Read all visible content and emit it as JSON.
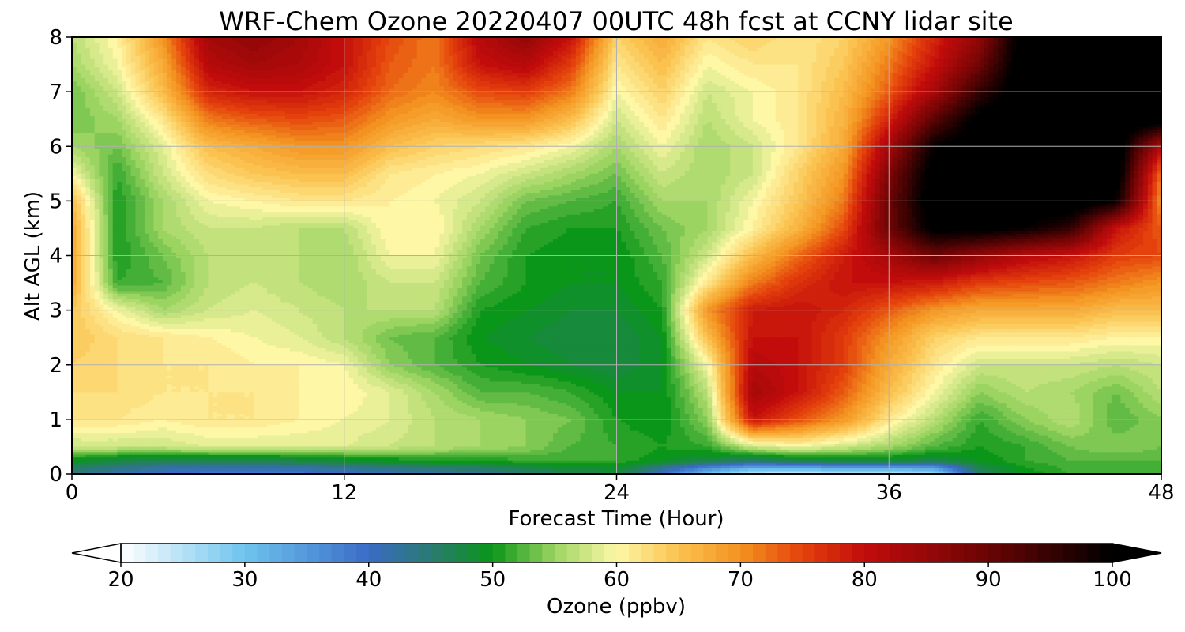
{
  "chart_data": {
    "type": "heatmap",
    "title": "WRF-Chem Ozone  20220407 00UTC 48h fcst at CCNY lidar site",
    "xlabel": "Forecast Time (Hour)",
    "ylabel": "Alt AGL (km)",
    "xlim": [
      0,
      48
    ],
    "ylim": [
      0,
      8
    ],
    "xticks": [
      0,
      12,
      24,
      36,
      48
    ],
    "yticks": [
      0,
      1,
      2,
      3,
      4,
      5,
      6,
      7,
      8
    ],
    "grid": true,
    "colorbar": {
      "label": "Ozone  (ppbv)",
      "range": [
        20,
        100
      ],
      "ticks": [
        20,
        30,
        40,
        50,
        60,
        70,
        80,
        90,
        100
      ],
      "extend": "both",
      "orientation": "horizontal",
      "colors": {
        "20": "#ffffff",
        "30": "#6ec4ee",
        "40": "#3a6cc7",
        "45": "#2a7a70",
        "50": "#0a9618",
        "55": "#9cd462",
        "60": "#fdf7a6",
        "65": "#fbc24f",
        "70": "#f39220",
        "75": "#e4410c",
        "80": "#c20c0c",
        "90": "#6a0404",
        "100": "#000000"
      }
    },
    "x": [
      0,
      2,
      4,
      6,
      8,
      10,
      12,
      14,
      16,
      18,
      20,
      22,
      24,
      26,
      28,
      30,
      32,
      34,
      36,
      38,
      40,
      42,
      44,
      46,
      48
    ],
    "y": [
      0,
      0.25,
      0.5,
      1,
      1.5,
      2,
      2.5,
      3,
      3.5,
      4,
      4.5,
      5,
      5.5,
      6,
      6.5,
      7,
      7.5,
      8
    ],
    "z": [
      [
        44,
        42,
        40,
        39,
        39,
        39,
        40,
        41,
        42,
        43,
        45,
        47,
        48,
        40,
        30,
        24,
        23,
        24,
        24,
        26,
        46,
        50,
        52,
        52,
        53
      ],
      [
        50,
        48,
        47,
        47,
        47,
        48,
        49,
        50,
        51,
        51,
        52,
        52,
        52,
        50,
        48,
        46,
        48,
        49,
        49,
        48,
        50,
        52,
        53,
        53,
        53
      ],
      [
        58,
        58,
        58,
        59,
        59,
        59,
        59,
        58,
        57,
        56,
        55,
        53,
        52,
        51,
        52,
        58,
        60,
        58,
        56,
        53,
        51,
        52,
        54,
        55,
        54
      ],
      [
        62,
        62,
        61,
        62,
        62,
        61,
        60,
        59,
        57,
        56,
        55,
        54,
        51,
        50,
        55,
        80,
        75,
        70,
        62,
        57,
        52,
        55,
        57,
        53,
        55
      ],
      [
        63,
        63,
        62,
        62,
        62,
        61,
        61,
        59,
        56,
        53,
        53,
        52,
        50,
        50,
        57,
        84,
        80,
        74,
        66,
        60,
        55,
        57,
        56,
        54,
        57
      ],
      [
        64,
        63,
        62,
        62,
        61,
        61,
        60,
        55,
        53,
        51,
        50,
        49,
        48,
        50,
        60,
        82,
        80,
        76,
        68,
        62,
        58,
        58,
        58,
        57,
        58
      ],
      [
        65,
        63,
        62,
        61,
        60,
        59,
        57,
        54,
        53,
        50,
        49,
        48,
        48,
        50,
        66,
        80,
        80,
        76,
        70,
        64,
        62,
        62,
        62,
        61,
        61
      ],
      [
        65,
        60,
        56,
        58,
        59,
        58,
        57,
        57,
        57,
        51,
        50,
        49,
        49,
        51,
        70,
        79,
        80,
        78,
        74,
        70,
        68,
        68,
        68,
        66,
        66
      ],
      [
        68,
        52,
        53,
        57,
        58,
        57,
        56,
        58,
        58,
        53,
        51,
        50,
        50,
        52,
        62,
        72,
        77,
        80,
        80,
        79,
        76,
        75,
        74,
        72,
        70
      ],
      [
        68,
        51,
        54,
        57,
        57,
        57,
        56,
        60,
        60,
        54,
        51,
        50,
        50,
        53,
        58,
        66,
        73,
        79,
        84,
        90,
        86,
        82,
        80,
        76,
        75
      ],
      [
        68,
        51,
        56,
        58,
        58,
        57,
        57,
        61,
        61,
        56,
        52,
        51,
        51,
        54,
        56,
        61,
        67,
        75,
        90,
        102,
        102,
        100,
        96,
        80,
        74
      ],
      [
        66,
        51,
        56,
        60,
        61,
        62,
        62,
        61,
        60,
        58,
        54,
        53,
        52,
        56,
        56,
        60,
        65,
        72,
        90,
        104,
        104,
        104,
        104,
        100,
        70
      ],
      [
        60,
        52,
        58,
        63,
        65,
        66,
        66,
        62,
        61,
        60,
        58,
        56,
        54,
        58,
        56,
        58,
        64,
        70,
        88,
        103,
        104,
        104,
        104,
        104,
        72
      ],
      [
        56,
        54,
        59,
        66,
        68,
        70,
        70,
        66,
        64,
        63,
        62,
        60,
        56,
        60,
        56,
        58,
        62,
        68,
        84,
        100,
        104,
        104,
        104,
        104,
        82
      ],
      [
        54,
        56,
        62,
        72,
        74,
        75,
        74,
        70,
        68,
        70,
        70,
        66,
        58,
        62,
        57,
        60,
        62,
        67,
        78,
        92,
        102,
        104,
        104,
        104,
        104
      ],
      [
        54,
        58,
        66,
        78,
        80,
        80,
        78,
        73,
        71,
        75,
        76,
        72,
        60,
        64,
        58,
        60,
        62,
        66,
        74,
        84,
        96,
        104,
        104,
        104,
        104
      ],
      [
        56,
        60,
        68,
        82,
        84,
        83,
        80,
        74,
        72,
        80,
        82,
        76,
        62,
        66,
        60,
        62,
        62,
        65,
        72,
        80,
        90,
        104,
        104,
        104,
        104
      ],
      [
        57,
        61,
        70,
        84,
        86,
        84,
        80,
        75,
        72,
        82,
        86,
        80,
        64,
        68,
        62,
        64,
        62,
        64,
        70,
        78,
        86,
        104,
        104,
        104,
        104
      ]
    ]
  }
}
